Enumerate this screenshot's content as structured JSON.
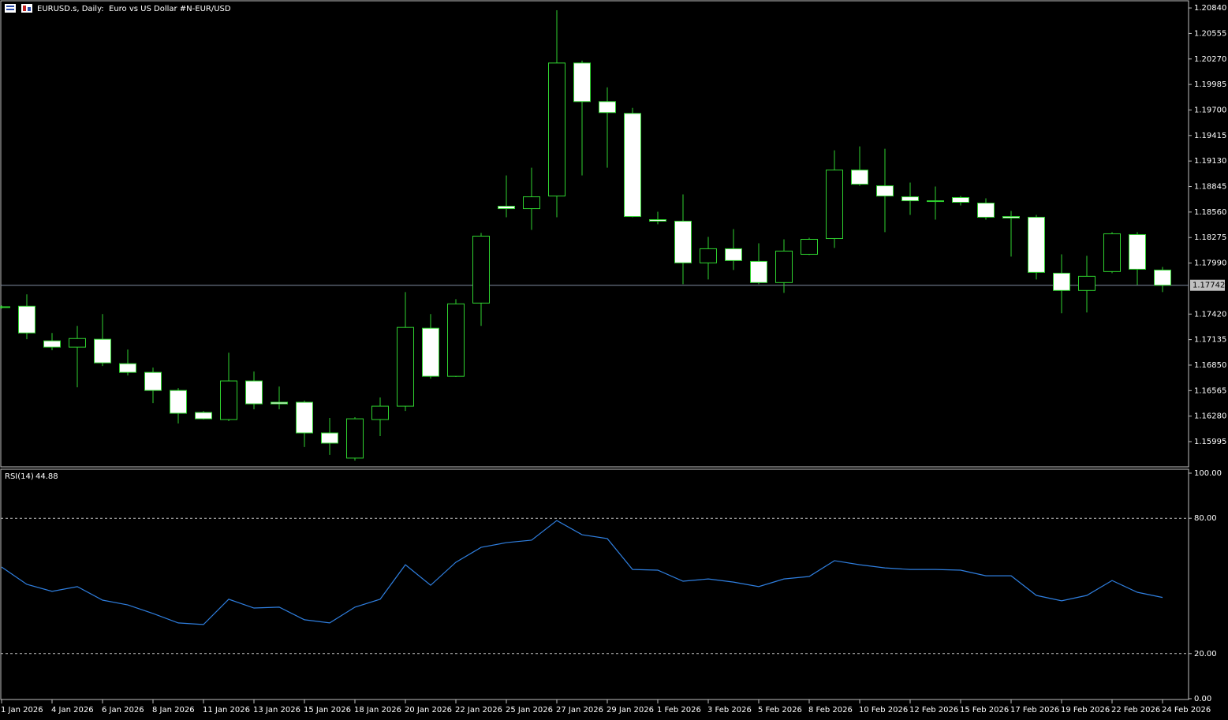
{
  "chart_data": [
    {
      "type": "candlestick",
      "title": "EURUSD.s, Daily:  Euro vs US Dollar #N-EUR/USD",
      "categories": [
        "1 Jan 2026",
        null,
        "4 Jan 2026",
        null,
        "6 Jan 2026",
        null,
        "8 Jan 2026",
        null,
        "11 Jan 2026",
        null,
        "13 Jan 2026",
        null,
        "15 Jan 2026",
        null,
        "18 Jan 2026",
        null,
        "20 Jan 2026",
        null,
        "22 Jan 2026",
        null,
        "25 Jan 2026",
        null,
        "27 Jan 2026",
        null,
        "29 Jan 2026",
        null,
        "1 Feb 2026",
        null,
        "3 Feb 2026",
        null,
        "5 Feb 2026",
        null,
        "8 Feb 2026",
        null,
        "10 Feb 2026",
        null,
        "12 Feb 2026",
        null,
        "15 Feb 2026",
        null,
        "17 Feb 2026",
        null,
        "19 Feb 2026",
        null,
        "22 Feb 2026",
        null,
        "24 Feb 2026"
      ],
      "open": [
        1.17499,
        1.17508,
        1.17121,
        1.17051,
        1.17139,
        1.16866,
        1.16769,
        1.16567,
        1.16321,
        1.16242,
        1.16673,
        1.16435,
        1.16435,
        1.16092,
        1.15811,
        1.16242,
        1.16391,
        1.17262,
        1.16725,
        1.17543,
        1.18625,
        1.18598,
        1.18739,
        1.20225,
        1.19794,
        1.19662,
        1.18475,
        1.18458,
        1.17992,
        1.1815,
        1.18009,
        1.17772,
        1.18088,
        1.18264,
        1.19029,
        1.18853,
        1.1873,
        1.18686,
        1.18722,
        1.1866,
        1.1851,
        1.18502,
        1.17877,
        1.17684,
        1.17895,
        1.18308,
        1.17912
      ],
      "high": [
        1.17517,
        1.1764,
        1.17209,
        1.17288,
        1.1742,
        1.17024,
        1.16822,
        1.16593,
        1.16338,
        1.16989,
        1.16778,
        1.16611,
        1.16453,
        1.16259,
        1.16268,
        1.16488,
        1.17666,
        1.1742,
        1.17587,
        1.18326,
        1.18968,
        1.19056,
        1.20814,
        1.20252,
        1.19953,
        1.19724,
        1.18563,
        1.18757,
        1.18282,
        1.1837,
        1.18211,
        1.18255,
        1.18273,
        1.19249,
        1.19293,
        1.19267,
        1.18889,
        1.18845,
        1.18739,
        1.18713,
        1.18572,
        1.18528,
        1.18088,
        1.18071,
        1.18335,
        1.18335,
        1.17947
      ],
      "low": [
        1.17482,
        1.17139,
        1.17016,
        1.16602,
        1.1684,
        1.16734,
        1.16426,
        1.16198,
        1.16242,
        1.16224,
        1.16356,
        1.16356,
        1.15934,
        1.15846,
        1.15784,
        1.16057,
        1.16338,
        1.16699,
        1.16717,
        1.17288,
        1.18502,
        1.18361,
        1.18502,
        1.18968,
        1.19056,
        1.18502,
        1.18423,
        1.17754,
        1.17807,
        1.17912,
        1.17754,
        1.17657,
        1.1808,
        1.18159,
        1.18853,
        1.18335,
        1.18528,
        1.18475,
        1.18634,
        1.18475,
        1.18062,
        1.17807,
        1.17429,
        1.17438,
        1.17877,
        1.17745,
        1.17666
      ],
      "close": [
        1.17502,
        1.17209,
        1.17051,
        1.17147,
        1.16875,
        1.16769,
        1.16567,
        1.16312,
        1.1625,
        1.16673,
        1.16417,
        1.16417,
        1.16092,
        1.15978,
        1.1625,
        1.16391,
        1.17271,
        1.16725,
        1.17534,
        1.18291,
        1.18598,
        1.1873,
        1.20225,
        1.19794,
        1.19671,
        1.1851,
        1.18458,
        1.17992,
        1.1815,
        1.18018,
        1.17772,
        1.18124,
        1.18255,
        1.19029,
        1.18871,
        1.18739,
        1.18686,
        1.18678,
        1.18669,
        1.18502,
        1.18493,
        1.17886,
        1.17684,
        1.17842,
        1.18317,
        1.17921,
        1.17742
      ],
      "current_price": 1.17742,
      "up_color": "#000000",
      "down_color": "#ffffff",
      "line_color": "#2fd22f",
      "ylim": [
        1.15722,
        1.2092
      ],
      "yticks": [
        {
          "value": 1.2084,
          "label": "1.20840"
        },
        1.20555,
        {
          "value": 1.2027,
          "label": "1.20270"
        },
        1.19985,
        {
          "value": 1.197,
          "label": "1.19700"
        },
        1.19415,
        {
          "value": 1.1913,
          "label": "1.19130"
        },
        1.18845,
        {
          "value": 1.1856,
          "label": "1.18560"
        },
        1.18275,
        {
          "value": 1.1799,
          "label": "1.17990"
        },
        {
          "value": 1.1742,
          "label": "1.17420"
        },
        1.17135,
        {
          "value": 1.1685,
          "label": "1.16850"
        },
        1.16565,
        {
          "value": 1.1628,
          "label": "1.16280"
        },
        1.15995
      ]
    },
    {
      "type": "line",
      "title": "RSI(14)",
      "color": "#2f7fe0",
      "values": [
        58.4,
        50.7,
        47.6,
        49.7,
        43.7,
        41.6,
        37.8,
        33.6,
        32.9,
        44.1,
        40.2,
        40.6,
        35.0,
        33.6,
        40.6,
        44.1,
        59.4,
        50.3,
        60.5,
        67.1,
        69.2,
        70.3,
        79.0,
        72.7,
        71.0,
        57.3,
        57.0,
        52.1,
        53.1,
        51.7,
        49.7,
        53.1,
        54.2,
        61.2,
        59.4,
        58.0,
        57.3,
        57.3,
        57.0,
        54.5,
        54.5,
        45.8,
        43.4,
        45.8,
        52.4,
        47.2,
        44.88
      ],
      "ylim": [
        0,
        100
      ],
      "yticks": [
        {
          "value": 100,
          "label": "100.00"
        },
        {
          "value": 80,
          "label": "80.00"
        },
        {
          "value": 20,
          "label": "20.00"
        },
        {
          "value": 0,
          "label": "0.00"
        }
      ]
    }
  ]
}
